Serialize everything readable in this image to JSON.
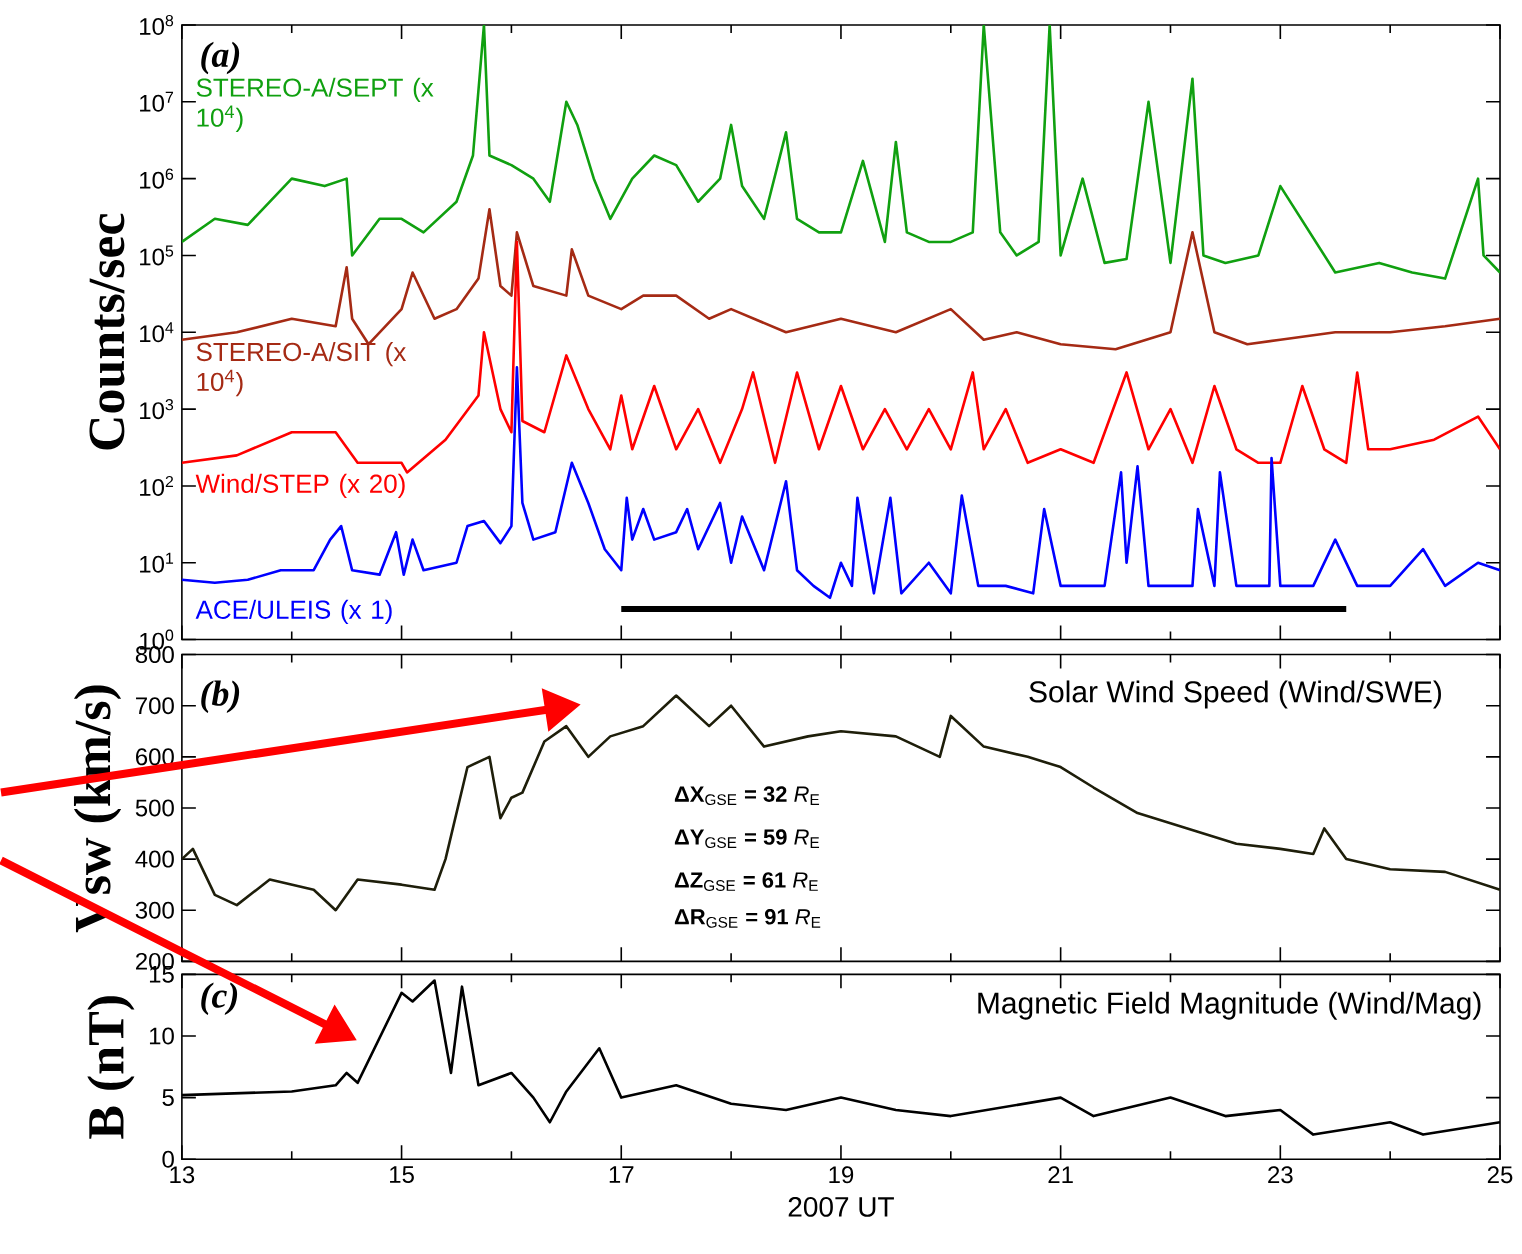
{
  "chart_data": [
    {
      "type": "line",
      "ylabel": "Counts/sec",
      "log": true,
      "xlim": [
        13,
        25
      ],
      "xticks": [
        13,
        15,
        17,
        19,
        21,
        23,
        25
      ],
      "ylim": [
        1,
        100000000
      ],
      "tick_labels": "y",
      "yticks": [
        {
          "value": 1,
          "label": "10$^{0}$"
        },
        {
          "value": 10,
          "label": "10$^{1}$"
        },
        {
          "value": 100,
          "label": "10$^{2}$"
        },
        {
          "value": 1000,
          "label": "10$^{3}$"
        },
        {
          "value": 10000,
          "label": "10$^{4}$"
        },
        {
          "value": 100000,
          "label": "10$^{5}$"
        },
        {
          "value": 1000000,
          "label": "10$^{6}$"
        },
        {
          "value": 10000000,
          "label": "10$^{7}$"
        },
        {
          "value": 100000000,
          "label": "10$^{8}$"
        }
      ],
      "annotations": [
        "(a)"
      ],
      "series": [
        {
          "name": "STEREO-A/SEPT (x 10$^{4}$)",
          "color": "#10a010",
          "x": [
            13,
            13.3,
            13.6,
            14.0,
            14.3,
            14.5,
            14.55,
            14.8,
            15.0,
            15.2,
            15.5,
            15.65,
            15.75,
            15.8,
            16.0,
            16.2,
            16.35,
            16.5,
            16.6,
            16.75,
            16.9,
            17.1,
            17.3,
            17.5,
            17.7,
            17.9,
            18.0,
            18.1,
            18.3,
            18.5,
            18.6,
            18.8,
            19.0,
            19.2,
            19.4,
            19.5,
            19.6,
            19.8,
            20.0,
            20.2,
            20.3,
            20.45,
            20.6,
            20.8,
            20.9,
            21.0,
            21.2,
            21.4,
            21.6,
            21.8,
            22.0,
            22.2,
            22.3,
            22.5,
            22.8,
            23.0,
            23.5,
            23.9,
            24.2,
            24.5,
            24.8,
            24.85,
            25.0
          ],
          "values": [
            150000.0,
            300000.0,
            250000.0,
            1000000.0,
            800000.0,
            1000000.0,
            100000.0,
            300000.0,
            300000.0,
            200000.0,
            500000.0,
            2000000.0,
            100000000.0,
            2000000.0,
            1500000.0,
            1000000.0,
            500000.0,
            10000000.0,
            5000000.0,
            1000000.0,
            300000.0,
            1000000.0,
            2000000.0,
            1500000.0,
            500000.0,
            1000000.0,
            5000000.0,
            800000.0,
            300000.0,
            4000000.0,
            300000.0,
            200000.0,
            200000.0,
            1700000.0,
            150000.0,
            3000000.0,
            200000.0,
            150000.0,
            150000.0,
            200000.0,
            100000000.0,
            200000.0,
            100000.0,
            150000.0,
            100000000.0,
            100000.0,
            1000000.0,
            80000.0,
            90000.0,
            10000000.0,
            80000.0,
            20000000.0,
            100000.0,
            80000.0,
            100000.0,
            800000.0,
            60000.0,
            80000.0,
            60000.0,
            50000.0,
            1000000.0,
            100000.0,
            60000.0
          ]
        },
        {
          "name": "STEREO-A/SIT (x 10$^{4}$)",
          "color": "#a52a14",
          "x": [
            13,
            13.5,
            14.0,
            14.4,
            14.5,
            14.55,
            14.7,
            15.0,
            15.1,
            15.3,
            15.5,
            15.7,
            15.8,
            15.9,
            16.0,
            16.05,
            16.2,
            16.5,
            16.55,
            16.7,
            17.0,
            17.2,
            17.5,
            17.8,
            18.0,
            18.5,
            19.0,
            19.5,
            20.0,
            20.3,
            20.6,
            21.0,
            21.5,
            22.0,
            22.2,
            22.4,
            22.7,
            23.0,
            23.5,
            24.0,
            24.5,
            25.0
          ],
          "values": [
            8000.0,
            10000.0,
            15000.0,
            12000.0,
            70000.0,
            15000.0,
            7000.0,
            20000.0,
            60000.0,
            15000.0,
            20000.0,
            50000.0,
            400000.0,
            40000.0,
            30000.0,
            200000.0,
            40000.0,
            30000.0,
            120000.0,
            30000.0,
            20000.0,
            30000.0,
            30000.0,
            15000.0,
            20000.0,
            10000.0,
            15000.0,
            10000.0,
            20000.0,
            8000.0,
            10000.0,
            7000.0,
            6000.0,
            10000.0,
            200000.0,
            10000.0,
            7000.0,
            8000.0,
            10000.0,
            10000.0,
            12000.0,
            15000.0
          ]
        },
        {
          "name": "Wind/STEP (x 20)",
          "color": "#ff0000",
          "x": [
            13,
            13.5,
            14.0,
            14.4,
            14.6,
            15.0,
            15.05,
            15.4,
            15.7,
            15.75,
            15.9,
            16.0,
            16.05,
            16.1,
            16.3,
            16.5,
            16.7,
            16.9,
            17.0,
            17.1,
            17.3,
            17.5,
            17.7,
            17.9,
            18.1,
            18.2,
            18.4,
            18.6,
            18.8,
            19.0,
            19.2,
            19.4,
            19.6,
            19.8,
            20.0,
            20.2,
            20.3,
            20.5,
            20.7,
            21.0,
            21.3,
            21.6,
            21.8,
            22.0,
            22.2,
            22.4,
            22.6,
            22.8,
            23.0,
            23.2,
            23.4,
            23.6,
            23.7,
            23.8,
            24.0,
            24.4,
            24.8,
            25.0
          ],
          "values": [
            200,
            250,
            500,
            500,
            200,
            200,
            150,
            400,
            1500,
            10000.0,
            1000,
            500,
            150000.0,
            700,
            500,
            5000,
            1000,
            300,
            1500,
            300,
            2000,
            300,
            1000,
            200,
            1000,
            3000,
            200,
            3000,
            300,
            2000,
            300,
            1000,
            300,
            1000,
            300,
            3000,
            300,
            1000,
            200,
            300,
            200,
            3000,
            300,
            1000,
            200,
            2000,
            300,
            200,
            200,
            2000,
            300,
            200,
            3000,
            300,
            300,
            400,
            800,
            300
          ]
        },
        {
          "name": "ACE/ULEIS (x 1)",
          "color": "#0000ff",
          "x": [
            13,
            13.3,
            13.6,
            13.9,
            14.2,
            14.35,
            14.45,
            14.55,
            14.8,
            14.95,
            15.02,
            15.1,
            15.2,
            15.5,
            15.6,
            15.75,
            15.9,
            16.0,
            16.05,
            16.1,
            16.2,
            16.4,
            16.55,
            16.7,
            16.85,
            17.0,
            17.05,
            17.1,
            17.2,
            17.3,
            17.5,
            17.6,
            17.7,
            17.9,
            18.0,
            18.1,
            18.3,
            18.5,
            18.6,
            18.75,
            18.9,
            19.0,
            19.1,
            19.15,
            19.3,
            19.45,
            19.55,
            19.8,
            20.0,
            20.1,
            20.25,
            20.5,
            20.75,
            20.85,
            21.0,
            21.2,
            21.4,
            21.55,
            21.6,
            21.7,
            21.8,
            22.0,
            22.2,
            22.25,
            22.4,
            22.45,
            22.6,
            22.9,
            22.92,
            23.0,
            23.3,
            23.5,
            23.7,
            24.0,
            24.3,
            24.5,
            24.8,
            25.0
          ],
          "values": [
            6,
            5.5,
            6,
            8,
            8,
            20,
            30,
            8,
            7,
            25,
            7,
            20,
            8,
            10,
            30,
            35,
            18,
            30,
            3500,
            60,
            20,
            25,
            200,
            60,
            15,
            8,
            70,
            20,
            50,
            20,
            25,
            50,
            15,
            60,
            10,
            40,
            8,
            115,
            8,
            5,
            3.5,
            10,
            5,
            70,
            4,
            70,
            4,
            10,
            4,
            75,
            5,
            5,
            4,
            50,
            5,
            5,
            5,
            150,
            10,
            180,
            5,
            5,
            5,
            50,
            5,
            150,
            5,
            5,
            230,
            5,
            5,
            20,
            5,
            5,
            15,
            5,
            10,
            8
          ]
        },
        {
          "color": "#000000",
          "x": [
            17,
            23.6
          ],
          "values": [
            2.5,
            2.5
          ]
        }
      ]
    },
    {
      "type": "line",
      "ylabel": "Vsw (km/s)",
      "xlim": [
        13,
        25
      ],
      "xticks": [
        13,
        15,
        17,
        19,
        21,
        23,
        25
      ],
      "ylim": [
        200,
        800
      ],
      "yticks": [
        200,
        300,
        400,
        500,
        600,
        700,
        800
      ],
      "tick_labels": "y",
      "annotations": [
        "(b)",
        "Solar Wind Speed (Wind/SWE)",
        "**ΔX**$_{GSE}$ **= 32** *R*$_{E}$",
        "**ΔY**$_{GSE}$ **= 59** *R*$_{E}$",
        "**ΔZ**$_{GSE}$ **= 61** *R*$_{E}$",
        "**ΔR**$_{GSE}$ **= 91** *R*$_{E}$"
      ],
      "series": [
        {
          "color": "#1e1e0a",
          "x": [
            13,
            13.1,
            13.3,
            13.5,
            13.8,
            14.2,
            14.4,
            14.6,
            15.0,
            15.3,
            15.4,
            15.6,
            15.8,
            15.9,
            16.0,
            16.1,
            16.3,
            16.5,
            16.7,
            16.9,
            17.2,
            17.5,
            17.8,
            18.0,
            18.3,
            18.7,
            19.0,
            19.5,
            19.9,
            20.0,
            20.3,
            20.7,
            21.0,
            21.3,
            21.7,
            22.0,
            22.3,
            22.6,
            23.0,
            23.3,
            23.4,
            23.6,
            24.0,
            24.5,
            25.0
          ],
          "values": [
            400,
            420,
            330,
            310,
            360,
            340,
            300,
            360,
            350,
            340,
            400,
            580,
            600,
            480,
            520,
            530,
            630,
            660,
            600,
            640,
            660,
            720,
            660,
            700,
            620,
            640,
            650,
            640,
            600,
            680,
            620,
            600,
            580,
            540,
            490,
            470,
            450,
            430,
            420,
            410,
            460,
            400,
            380,
            375,
            340
          ]
        }
      ]
    },
    {
      "type": "line",
      "ylabel": "B (nT)",
      "xlabel": "2007 UT",
      "xlim": [
        13,
        25
      ],
      "xticks": [
        13,
        15,
        17,
        19,
        21,
        23,
        25
      ],
      "ylim": [
        0,
        15
      ],
      "yticks": [
        0,
        5,
        10,
        15
      ],
      "annotations": [
        "(c)",
        "Magnetic Field Magnitude (Wind/Mag)"
      ],
      "series": [
        {
          "color": "#000000",
          "x": [
            13,
            14,
            14.4,
            14.5,
            14.6,
            15.0,
            15.1,
            15.3,
            15.45,
            15.55,
            15.7,
            16.0,
            16.2,
            16.35,
            16.5,
            16.8,
            17.0,
            17.5,
            18,
            18.5,
            19,
            19.5,
            20,
            21,
            21.3,
            22,
            22.5,
            23,
            23.3,
            24,
            24.3,
            25
          ],
          "values": [
            5.2,
            5.5,
            6,
            7,
            6.2,
            13.5,
            12.8,
            14.5,
            7,
            14,
            6,
            7,
            5,
            3,
            5.5,
            9,
            5,
            6,
            4.5,
            4,
            5,
            4,
            3.5,
            5,
            3.5,
            5,
            3.5,
            4,
            2,
            3,
            2,
            3
          ]
        }
      ]
    }
  ]
}
